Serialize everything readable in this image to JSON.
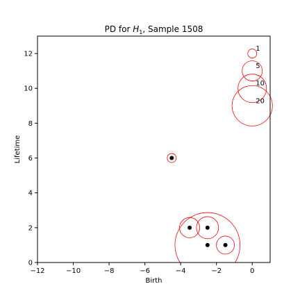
{
  "chart_data": {
    "type": "scatter",
    "title_prefix": "PD for ",
    "title_var": "H",
    "title_sub": "1",
    "title_suffix": ", Sample 1508",
    "xlabel": "Birth",
    "ylabel": "Lifetime",
    "xlim": [
      -12,
      1
    ],
    "ylim": [
      0,
      13
    ],
    "xticks": [
      -12,
      -10,
      -8,
      -6,
      -4,
      -2,
      0
    ],
    "yticks": [
      0,
      2,
      4,
      6,
      8,
      10,
      12
    ],
    "grid": false,
    "points": [
      {
        "x": -4.5,
        "y": 6,
        "count": 1
      },
      {
        "x": -3.5,
        "y": 2,
        "count": 5
      },
      {
        "x": -2.5,
        "y": 2,
        "count": 6
      },
      {
        "x": -2.5,
        "y": 1,
        "count": 52
      },
      {
        "x": -1.5,
        "y": 1,
        "count": 4
      }
    ],
    "size_legend": [
      {
        "label": "1",
        "x": 0,
        "y": 12,
        "count": 1
      },
      {
        "label": "5",
        "x": 0,
        "y": 11,
        "count": 5
      },
      {
        "label": "10",
        "x": 0,
        "y": 10,
        "count": 10
      },
      {
        "label": "20",
        "x": 0,
        "y": 9,
        "count": 20
      }
    ],
    "colors": {
      "circle": "#ff0000",
      "point": "#000000",
      "axis": "#000000"
    }
  }
}
